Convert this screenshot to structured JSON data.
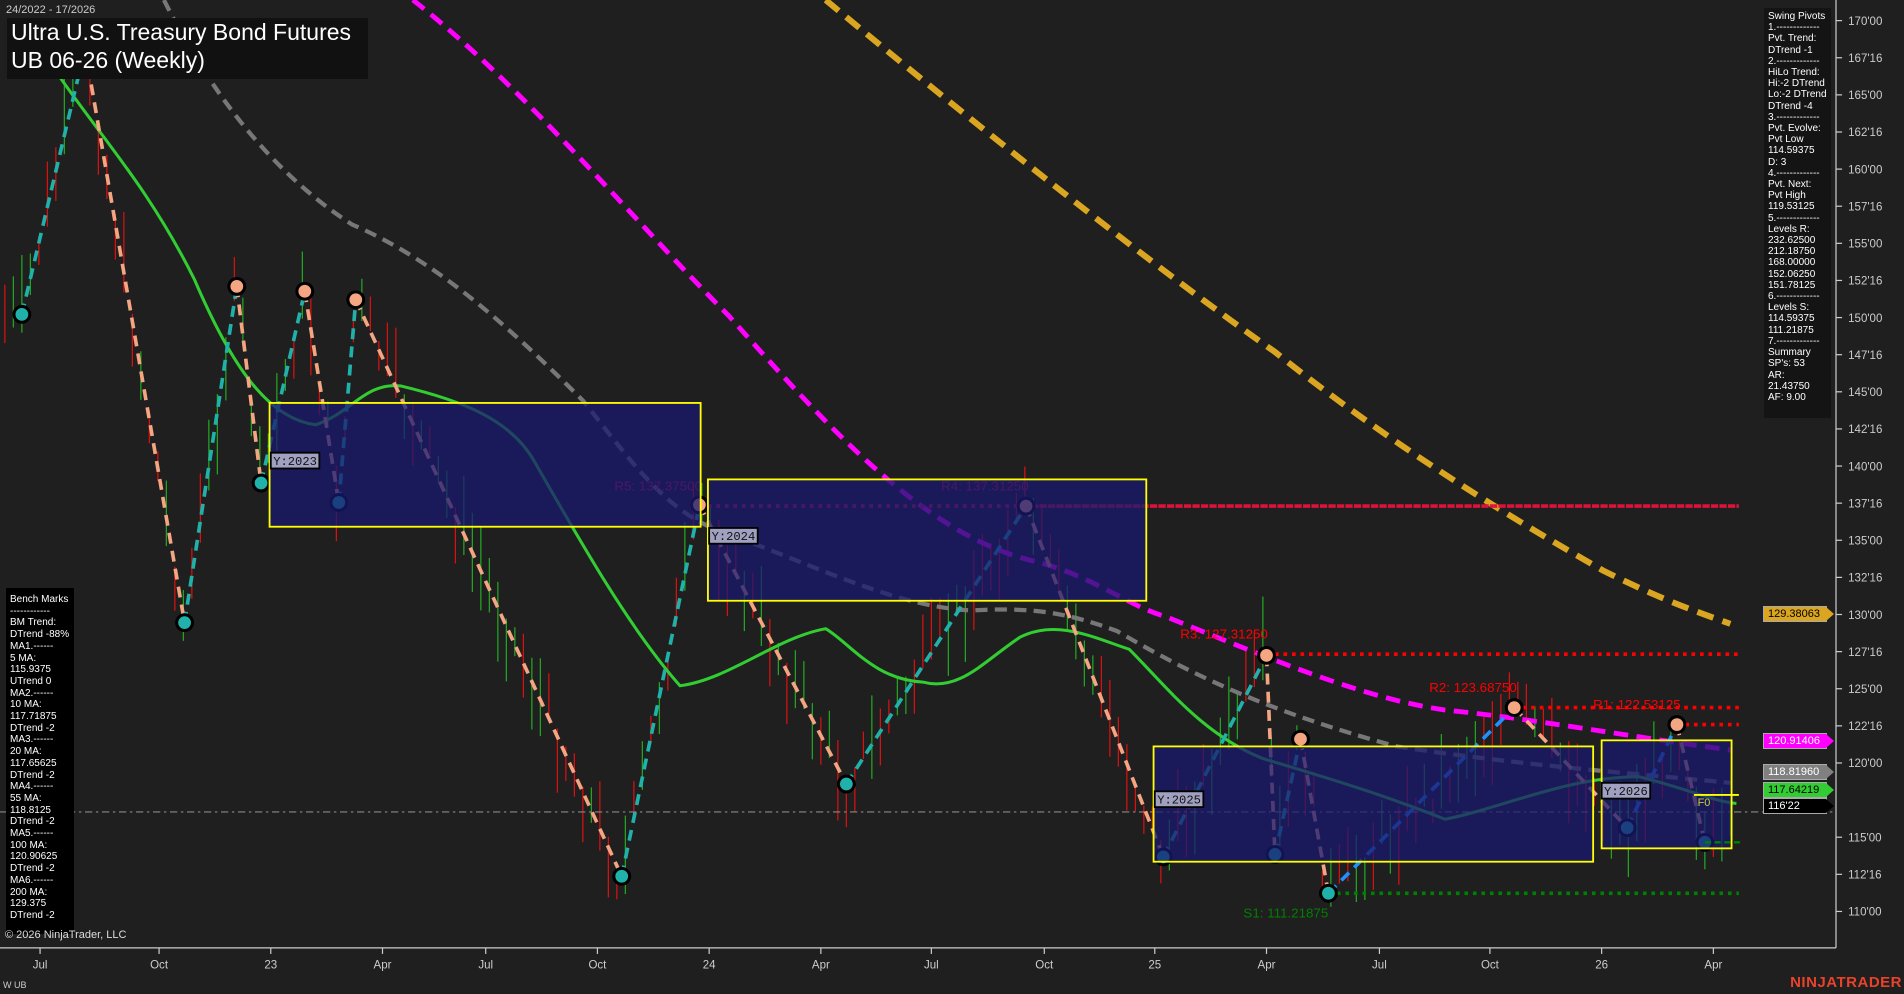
{
  "header": {
    "date_range": "24/2022 - 17/2026",
    "title": "Ultra U.S. Treasury Bond Futures",
    "subtitle": "UB 06-26 (Weekly)"
  },
  "swing_pivots": [
    "Swing Pivots",
    "1.-------------",
    "Pvt. Trend:",
    "DTrend -1",
    "2.-------------",
    "HiLo Trend:",
    "Hi:-2 DTrend",
    "Lo:-2 DTrend",
    "DTrend -4",
    "3.-------------",
    "Pvt. Evolve:",
    "Pvt Low",
    "114.59375",
    "D: 3",
    "4.-------------",
    "Pvt. Next:",
    "Pvt High",
    "119.53125",
    "5.-------------",
    "Levels R:",
    "232.62500",
    "212.18750",
    "168.00000",
    "152.06250",
    "151.78125",
    "6.-------------",
    "Levels S:",
    "114.59375",
    "111.21875",
    "7.-------------",
    "Summary",
    "SP's: 53",
    "AR: 21.43750",
    "AF: 9.00"
  ],
  "bench_marks": [
    "Bench Marks",
    "------------",
    "BM Trend:",
    "DTrend -88%",
    "MA1.------",
    "5 MA:",
    "115.9375",
    "UTrend 0",
    "MA2.------",
    "10 MA:",
    "117.71875",
    "DTrend -2",
    "MA3.------",
    "20 MA:",
    "117.65625",
    "DTrend -2",
    "MA4.------",
    "55 MA:",
    "118.8125",
    "DTrend -2",
    "MA5.------",
    "100 MA:",
    "120.90625",
    "DTrend -2",
    "MA6.------",
    "200 MA:",
    "129.375",
    "DTrend -2"
  ],
  "footer": {
    "copyright": "© 2026 NinjaTrader, LLC",
    "instrument": "W UB",
    "brand": "NINJATRADER"
  },
  "price_axis": {
    "ticks": [
      {
        "v": 170,
        "label": "170'00"
      },
      {
        "v": 167.5,
        "label": "167'16"
      },
      {
        "v": 165,
        "label": "165'00"
      },
      {
        "v": 162.5,
        "label": "162'16"
      },
      {
        "v": 160,
        "label": "160'00"
      },
      {
        "v": 157.5,
        "label": "157'16"
      },
      {
        "v": 155,
        "label": "155'00"
      },
      {
        "v": 152.5,
        "label": "152'16"
      },
      {
        "v": 150,
        "label": "150'00"
      },
      {
        "v": 147.5,
        "label": "147'16"
      },
      {
        "v": 145,
        "label": "145'00"
      },
      {
        "v": 142.5,
        "label": "142'16"
      },
      {
        "v": 140,
        "label": "140'00"
      },
      {
        "v": 137.5,
        "label": "137'16"
      },
      {
        "v": 135,
        "label": "135'00"
      },
      {
        "v": 132.5,
        "label": "132'16"
      },
      {
        "v": 130,
        "label": "130'00"
      },
      {
        "v": 127.5,
        "label": "127'16"
      },
      {
        "v": 125,
        "label": "125'00"
      },
      {
        "v": 122.5,
        "label": "122'16"
      },
      {
        "v": 120,
        "label": "120'00"
      },
      {
        "v": 115,
        "label": "115'00"
      },
      {
        "v": 112.5,
        "label": "112'16"
      },
      {
        "v": 110,
        "label": "110'00"
      }
    ]
  },
  "time_axis": {
    "labels": [
      "Jul",
      "Oct",
      "23",
      "Apr",
      "Jul",
      "Oct",
      "24",
      "Apr",
      "Jul",
      "Oct",
      "25",
      "Apr",
      "Jul",
      "Oct",
      "26",
      "Apr"
    ]
  },
  "price_tags": [
    {
      "label": "129.38063",
      "color": "#daa520",
      "text": "#000"
    },
    {
      "label": "120.91406",
      "color": "#ff00ff",
      "text": "#fff"
    },
    {
      "label": "118.81960",
      "color": "#808080",
      "text": "#fff"
    },
    {
      "label": "117.64219",
      "color": "#32cd32",
      "text": "#000"
    },
    {
      "label": "116'22",
      "color": "#000000",
      "text": "#fff"
    }
  ],
  "levels": [
    {
      "label": "R5: 137.37500",
      "price": 137.375,
      "color": "#dc143c"
    },
    {
      "label": "R4: 137.31250",
      "price": 137.3125,
      "color": "#dc143c"
    },
    {
      "label": "R3: 127.31250",
      "price": 127.3125,
      "color": "#ff0000"
    },
    {
      "label": "R2: 123.68750",
      "price": 123.6875,
      "color": "#ff0000"
    },
    {
      "label": "R1: 122.53125",
      "price": 122.53125,
      "color": "#ff0000"
    },
    {
      "label": "S1: 111.21875",
      "price": 111.21875,
      "color": "#008000"
    }
  ],
  "year_boxes": [
    "Y:2023",
    "Y:2024",
    "Y:2025",
    "Y:2026"
  ],
  "fib_label": "F0",
  "colors": {
    "ma200": "#daa520",
    "ma100": "#ff00ff",
    "ma55": "#808080",
    "ma20": "#32cd32",
    "swing_down": "#f4a582",
    "swing_up": "#20b2aa",
    "box_fill": "#191970",
    "box_border": "#ffff00"
  }
}
